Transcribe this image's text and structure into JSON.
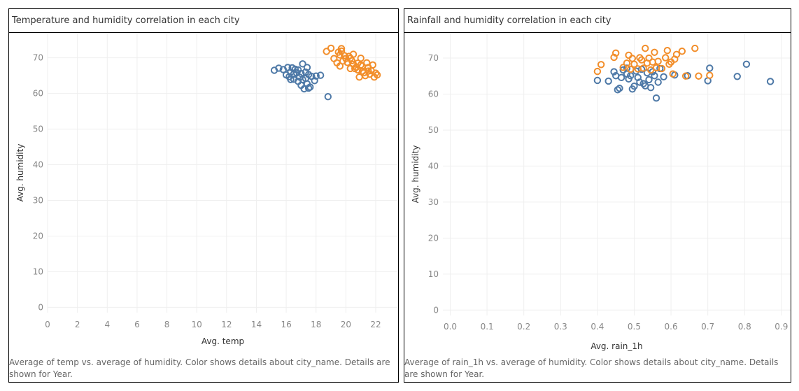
{
  "colors": {
    "series_a": "#4e79a7",
    "series_b": "#f28e2b",
    "grid": "#efefef"
  },
  "chart_data": [
    {
      "type": "scatter",
      "title": "Temperature and humidity correlation in each city",
      "xlabel": "Avg. temp",
      "ylabel": "Avg. humidity",
      "caption": "Average of temp vs. average of humidity. Color shows details about city_name. Details are shown for Year.",
      "xlim": [
        0,
        23.5
      ],
      "ylim": [
        -1.5,
        77
      ],
      "xticks": [
        0,
        2,
        4,
        6,
        8,
        10,
        12,
        14,
        16,
        18,
        20,
        22
      ],
      "yticks": [
        0,
        10,
        20,
        30,
        40,
        50,
        60,
        70
      ],
      "grid": true,
      "series": [
        {
          "color": "#4e79a7",
          "points": [
            [
              15.2,
              66.5
            ],
            [
              15.5,
              67.1
            ],
            [
              15.8,
              66.7
            ],
            [
              16.0,
              65.2
            ],
            [
              16.1,
              67.3
            ],
            [
              16.2,
              64.7
            ],
            [
              16.3,
              66.0
            ],
            [
              16.3,
              63.9
            ],
            [
              16.4,
              67.2
            ],
            [
              16.5,
              65.4
            ],
            [
              16.5,
              64.0
            ],
            [
              16.6,
              66.8
            ],
            [
              16.7,
              65.8
            ],
            [
              16.8,
              63.4
            ],
            [
              16.8,
              66.6
            ],
            [
              16.9,
              64.6
            ],
            [
              17.0,
              62.3
            ],
            [
              17.0,
              65.6
            ],
            [
              17.1,
              63.9
            ],
            [
              17.1,
              68.3
            ],
            [
              17.2,
              61.3
            ],
            [
              17.3,
              64.2
            ],
            [
              17.3,
              66.0
            ],
            [
              17.4,
              62.7
            ],
            [
              17.4,
              67.3
            ],
            [
              17.5,
              65.3
            ],
            [
              17.5,
              61.5
            ],
            [
              17.6,
              61.8
            ],
            [
              17.7,
              64.8
            ],
            [
              17.9,
              63.6
            ],
            [
              18.0,
              64.9
            ],
            [
              18.3,
              65.1
            ],
            [
              18.8,
              59.1
            ]
          ]
        },
        {
          "color": "#f28e2b",
          "points": [
            [
              18.7,
              71.8
            ],
            [
              19.0,
              72.7
            ],
            [
              19.2,
              69.8
            ],
            [
              19.4,
              68.6
            ],
            [
              19.5,
              71.6
            ],
            [
              19.6,
              70.8
            ],
            [
              19.6,
              67.7
            ],
            [
              19.7,
              72.6
            ],
            [
              19.7,
              71.9
            ],
            [
              19.8,
              69.1
            ],
            [
              19.9,
              70.6
            ],
            [
              20.0,
              69.8
            ],
            [
              20.1,
              68.7
            ],
            [
              20.2,
              70.4
            ],
            [
              20.3,
              69.9
            ],
            [
              20.3,
              67.0
            ],
            [
              20.4,
              69.2
            ],
            [
              20.5,
              71.0
            ],
            [
              20.5,
              68.2
            ],
            [
              20.6,
              67.0
            ],
            [
              20.7,
              67.4
            ],
            [
              20.8,
              66.6
            ],
            [
              20.8,
              68.5
            ],
            [
              20.9,
              64.6
            ],
            [
              21.0,
              69.9
            ],
            [
              21.0,
              68.0
            ],
            [
              21.1,
              66.2
            ],
            [
              21.1,
              67.7
            ],
            [
              21.2,
              65.8
            ],
            [
              21.3,
              65.0
            ],
            [
              21.4,
              68.6
            ],
            [
              21.5,
              67.3
            ],
            [
              21.5,
              66.3
            ],
            [
              21.6,
              65.4
            ],
            [
              21.7,
              66.4
            ],
            [
              21.8,
              68.0
            ],
            [
              21.9,
              64.6
            ],
            [
              22.0,
              65.7
            ],
            [
              22.1,
              65.2
            ]
          ]
        }
      ]
    },
    {
      "type": "scatter",
      "title": "Rainfall and humidity correlation in each city",
      "xlabel": "Avg. rain_1h",
      "ylabel": "Avg. humidity",
      "caption": "Average of rain_1h vs. average of humidity. Color shows details about city_name. Details are shown for Year.",
      "xlim": [
        -0.02,
        0.925
      ],
      "ylim": [
        -1.5,
        77
      ],
      "xticks": [
        0.0,
        0.1,
        0.2,
        0.3,
        0.4,
        0.5,
        0.6,
        0.7,
        0.8,
        0.9
      ],
      "yticks": [
        0,
        10,
        20,
        30,
        40,
        50,
        60,
        70
      ],
      "grid": true,
      "series": [
        {
          "color": "#4e79a7",
          "points": [
            [
              0.4,
              63.8
            ],
            [
              0.43,
              63.6
            ],
            [
              0.445,
              66.2
            ],
            [
              0.45,
              65.1
            ],
            [
              0.455,
              61.2
            ],
            [
              0.46,
              61.6
            ],
            [
              0.465,
              64.6
            ],
            [
              0.47,
              66.7
            ],
            [
              0.48,
              67.2
            ],
            [
              0.48,
              65.6
            ],
            [
              0.485,
              64.2
            ],
            [
              0.49,
              65.1
            ],
            [
              0.495,
              61.4
            ],
            [
              0.5,
              62.2
            ],
            [
              0.505,
              66.4
            ],
            [
              0.51,
              64.6
            ],
            [
              0.515,
              63.3
            ],
            [
              0.52,
              66.9
            ],
            [
              0.525,
              62.9
            ],
            [
              0.53,
              62.3
            ],
            [
              0.535,
              65.9
            ],
            [
              0.54,
              64.0
            ],
            [
              0.545,
              61.8
            ],
            [
              0.55,
              66.2
            ],
            [
              0.555,
              65.1
            ],
            [
              0.56,
              58.9
            ],
            [
              0.565,
              63.3
            ],
            [
              0.57,
              67.1
            ],
            [
              0.58,
              64.8
            ],
            [
              0.61,
              65.3
            ],
            [
              0.645,
              65.1
            ],
            [
              0.7,
              63.7
            ],
            [
              0.705,
              67.2
            ],
            [
              0.78,
              64.9
            ],
            [
              0.805,
              68.3
            ],
            [
              0.87,
              63.5
            ]
          ]
        },
        {
          "color": "#f28e2b",
          "points": [
            [
              0.4,
              66.3
            ],
            [
              0.41,
              68.2
            ],
            [
              0.445,
              70.2
            ],
            [
              0.45,
              71.4
            ],
            [
              0.47,
              67.4
            ],
            [
              0.48,
              68.6
            ],
            [
              0.485,
              70.8
            ],
            [
              0.49,
              66.9
            ],
            [
              0.495,
              69.9
            ],
            [
              0.5,
              68.3
            ],
            [
              0.51,
              67.0
            ],
            [
              0.515,
              70.1
            ],
            [
              0.52,
              69.5
            ],
            [
              0.525,
              67.2
            ],
            [
              0.53,
              72.7
            ],
            [
              0.535,
              68.6
            ],
            [
              0.54,
              70.0
            ],
            [
              0.545,
              66.7
            ],
            [
              0.55,
              68.9
            ],
            [
              0.555,
              71.6
            ],
            [
              0.56,
              67.3
            ],
            [
              0.565,
              69.1
            ],
            [
              0.575,
              67.1
            ],
            [
              0.585,
              70.1
            ],
            [
              0.59,
              72.1
            ],
            [
              0.595,
              68.3
            ],
            [
              0.6,
              68.9
            ],
            [
              0.605,
              65.6
            ],
            [
              0.61,
              69.7
            ],
            [
              0.615,
              71.0
            ],
            [
              0.63,
              71.9
            ],
            [
              0.64,
              65.0
            ],
            [
              0.665,
              72.7
            ],
            [
              0.675,
              65.0
            ],
            [
              0.705,
              65.2
            ]
          ]
        }
      ]
    }
  ]
}
